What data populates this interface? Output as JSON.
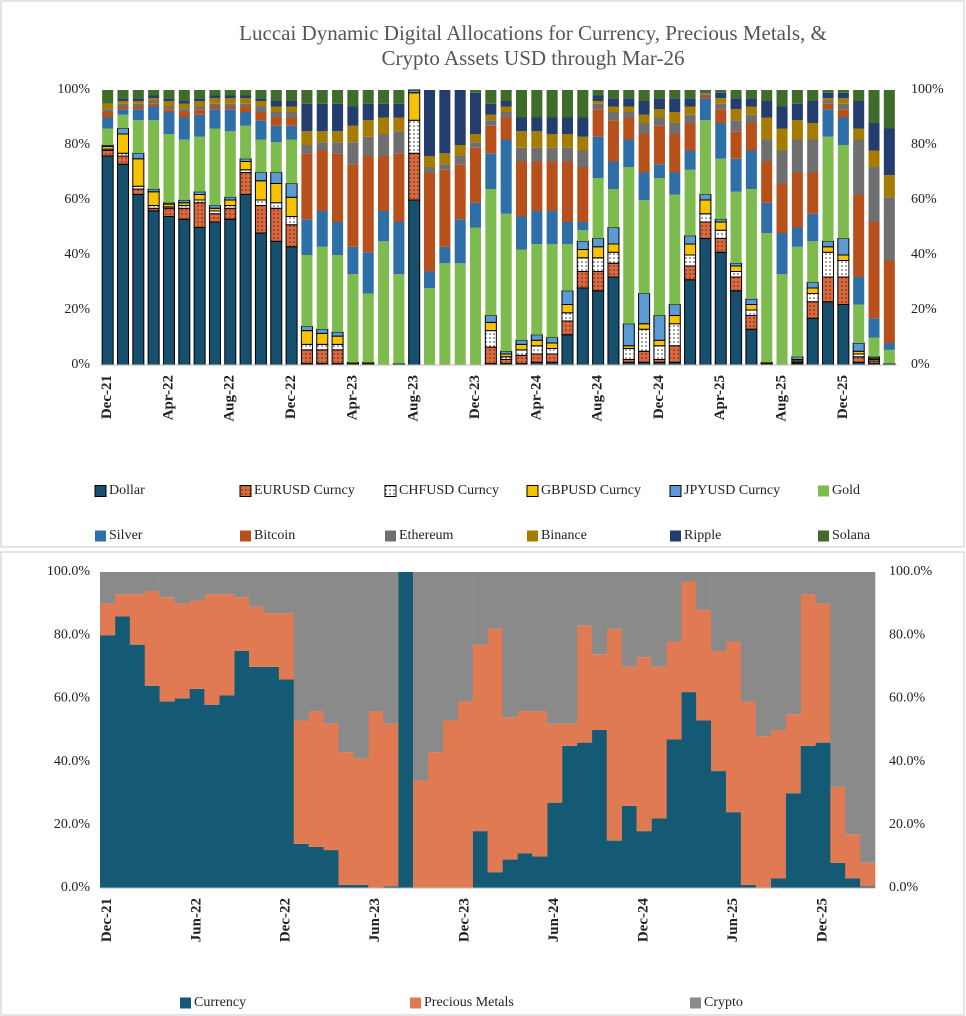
{
  "chart_data": [
    {
      "type": "bar",
      "stacked": true,
      "title": [
        "Luccai Dynamic Digital Allocations for Currency, Precious Metals, &",
        "Crypto Assets USD through Mar-26"
      ],
      "categories": [
        "Dec-21",
        null,
        null,
        null,
        "Apr-22",
        null,
        null,
        null,
        "Aug-22",
        null,
        null,
        null,
        "Dec-22",
        null,
        null,
        null,
        "Apr-23",
        null,
        null,
        null,
        "Aug-23",
        null,
        null,
        null,
        "Dec-23",
        null,
        null,
        null,
        "Apr-24",
        null,
        null,
        null,
        "Aug-24",
        null,
        null,
        null,
        "Dec-24",
        null,
        null,
        null,
        "Apr-25",
        null,
        null,
        null,
        "Aug-25",
        null,
        null,
        null,
        "Dec-25",
        null,
        null,
        null
      ],
      "ylim": [
        0,
        100
      ],
      "yticks": [
        {
          "value": 0,
          "label": "0%"
        },
        {
          "value": 20,
          "label": "20%"
        },
        {
          "value": 40,
          "label": "40%"
        },
        {
          "value": 60,
          "label": "60%"
        },
        {
          "value": 80,
          "label": "80%"
        },
        {
          "value": 100,
          "label": "100%"
        }
      ],
      "y2lim": [
        0,
        100
      ],
      "y2ticks": [
        {
          "value": 0,
          "label": "0%"
        },
        {
          "value": 20,
          "label": "20%"
        },
        {
          "value": 40,
          "label": "40%"
        },
        {
          "value": 60,
          "label": "60%"
        },
        {
          "value": 80,
          "label": "80%"
        },
        {
          "value": 100,
          "label": "100%"
        }
      ],
      "series": [
        {
          "name": "Dollar",
          "color": "#16506e",
          "values": [
            76,
            73,
            62,
            56,
            54,
            53,
            50,
            52,
            53,
            62,
            48,
            45,
            43,
            0.5,
            0.5,
            0.5,
            0.5,
            0.5,
            0,
            0.5,
            60,
            0,
            0,
            0,
            0,
            0.5,
            0.5,
            0.5,
            1,
            1,
            11,
            28,
            27,
            32,
            1,
            1,
            1,
            1,
            31,
            46,
            41,
            27,
            13,
            0.5,
            0,
            0.5,
            17,
            23,
            22,
            1,
            0.5,
            0.5
          ]
        },
        {
          "name": "EURUSD Curncy",
          "color": "#e0673a",
          "pattern": "dots",
          "values": [
            2,
            3,
            2,
            1,
            3,
            4,
            9,
            3,
            4,
            8,
            10,
            12,
            8,
            5,
            5,
            5,
            0,
            0,
            0,
            0,
            17,
            0,
            0,
            0,
            0,
            6,
            1.5,
            3,
            3,
            3,
            5,
            6,
            7,
            5,
            1,
            4,
            1,
            6,
            5,
            6,
            5,
            5,
            5,
            0.5,
            0,
            0.5,
            6,
            9,
            10,
            2,
            1,
            0
          ]
        },
        {
          "name": "CHFUSD Curncy",
          "color": "#ffffff",
          "pattern": "dots",
          "values": [
            0.5,
            1,
            1,
            1,
            0.5,
            1,
            1,
            1,
            1,
            1,
            2,
            2,
            3,
            2,
            2,
            2,
            0,
            0,
            0,
            0,
            12,
            0,
            0,
            0,
            0,
            6,
            1,
            2,
            3,
            2,
            3,
            5,
            5,
            4,
            4,
            8,
            5,
            8,
            4,
            3,
            3,
            2,
            2,
            0,
            0,
            0.5,
            3,
            9,
            6,
            1,
            0.5,
            0
          ]
        },
        {
          "name": "GBPUSD Curncy",
          "color": "#f7c200",
          "values": [
            1,
            7,
            10,
            5,
            1,
            1,
            2,
            1,
            2,
            3,
            7,
            7,
            7,
            5,
            4,
            3,
            0.5,
            0.5,
            0,
            0,
            10,
            0,
            0,
            0,
            0,
            3,
            1,
            2,
            2,
            2,
            3,
            3,
            4,
            3,
            1,
            2,
            2,
            3,
            4,
            5,
            3,
            2,
            2,
            0,
            0,
            0.5,
            2,
            2,
            2,
            1,
            0.5,
            0
          ]
        },
        {
          "name": "JPYUSD Curncy",
          "color": "#5b9bd5",
          "values": [
            0.5,
            2,
            2,
            1,
            0.5,
            1,
            1,
            1,
            1,
            1,
            3,
            4,
            5,
            1.5,
            1.5,
            1.5,
            0,
            0,
            0,
            0,
            1,
            0,
            0,
            0,
            0,
            2.5,
            1,
            1.5,
            2,
            2,
            5,
            3,
            3,
            6,
            8,
            11,
            9,
            4,
            3,
            2,
            1,
            1,
            2,
            0,
            0,
            1,
            2,
            2,
            6,
            3,
            0.5,
            0
          ]
        },
        {
          "name": "Gold",
          "color": "#7dbb4f",
          "values": [
            6,
            5,
            12,
            25,
            25,
            22,
            20,
            28,
            24,
            12,
            12,
            11,
            16,
            26,
            30,
            28,
            32,
            25,
            45,
            32.5,
            0,
            28,
            37,
            37,
            50,
            46,
            50,
            33,
            33,
            34,
            17,
            4,
            22,
            14,
            57,
            34,
            50,
            40,
            24,
            27,
            22,
            26,
            40,
            47,
            33,
            40,
            15,
            38,
            34,
            14,
            7,
            5
          ]
        },
        {
          "name": "Silver",
          "color": "#2e6fa8",
          "values": [
            4,
            2,
            4,
            5,
            8,
            8,
            8,
            7,
            8,
            5,
            7,
            6,
            5,
            13,
            13,
            12,
            10,
            15,
            11,
            19,
            0,
            6,
            6,
            16,
            9,
            13,
            27,
            12,
            12,
            12,
            8,
            3,
            15,
            10,
            10,
            10,
            5,
            8,
            7,
            8,
            13,
            12,
            14,
            11,
            15,
            7,
            10,
            10,
            10,
            10,
            7,
            2.5
          ]
        },
        {
          "name": "Bitcoin",
          "color": "#b8501c",
          "values": [
            2,
            1,
            1,
            1,
            1,
            2,
            2,
            1,
            1,
            2,
            3,
            3,
            3,
            24,
            22,
            25,
            30,
            35,
            20,
            25,
            0,
            36,
            28,
            20,
            20,
            10,
            8,
            20,
            18,
            18,
            22,
            20,
            10,
            15,
            8,
            14,
            14,
            14,
            10,
            1,
            5,
            10,
            10,
            15,
            18,
            20,
            15,
            2,
            3,
            30,
            35,
            30
          ]
        },
        {
          "name": "Ethereum",
          "color": "#6f6f6f",
          "values": [
            1,
            1,
            1,
            1,
            1,
            1,
            1,
            1,
            1,
            1,
            2,
            2,
            2,
            3,
            3,
            4,
            8,
            7,
            8,
            8,
            0,
            2,
            2,
            3,
            2,
            2,
            2,
            5,
            5,
            5,
            5,
            6,
            2,
            3,
            2,
            4,
            3,
            4,
            3,
            0.5,
            2,
            4,
            3,
            8,
            12,
            12,
            12,
            1,
            2,
            20,
            20,
            23
          ]
        },
        {
          "name": "Binance",
          "color": "#a67c00",
          "values": [
            2,
            1,
            1,
            1,
            2,
            2,
            2,
            2,
            2,
            2,
            2,
            2,
            2,
            5,
            4,
            4,
            6,
            6,
            6,
            5,
            0,
            4,
            4,
            4,
            3,
            2,
            2,
            6,
            6,
            5,
            5,
            5,
            1,
            2,
            2,
            3,
            3,
            4,
            3,
            0.5,
            2,
            4,
            3,
            8,
            8,
            7,
            6,
            1,
            2,
            4,
            6,
            8
          ]
        },
        {
          "name": "Ripple",
          "color": "#233e6e",
          "values": [
            0,
            1,
            1,
            1,
            1,
            1,
            1,
            1,
            1,
            1,
            1,
            2,
            2,
            10,
            10,
            10,
            7,
            6,
            5,
            5,
            0,
            24,
            23,
            20,
            15,
            4,
            2,
            5,
            5,
            6,
            6,
            7,
            2,
            3,
            3,
            5,
            4,
            5,
            3,
            0.5,
            2,
            4,
            3,
            6,
            8,
            6,
            8,
            2,
            2,
            10,
            10,
            17
          ]
        },
        {
          "name": "Solana",
          "color": "#3f6b2b",
          "values": [
            5,
            3,
            3,
            2,
            3,
            4,
            3,
            2,
            2,
            2,
            3,
            4,
            4,
            5,
            5,
            5,
            6,
            5,
            5,
            5,
            0,
            0,
            0,
            0,
            1,
            5,
            4,
            10,
            10,
            10,
            10,
            10,
            2,
            3,
            3,
            4,
            3,
            3,
            3,
            0.5,
            1,
            3,
            3,
            4,
            6,
            5,
            4,
            1,
            1,
            4,
            12,
            14
          ]
        }
      ]
    },
    {
      "type": "area",
      "stacked": true,
      "categories": [
        "Dec-21",
        null,
        null,
        null,
        null,
        null,
        "Jun-22",
        null,
        null,
        null,
        null,
        null,
        "Dec-22",
        null,
        null,
        null,
        null,
        null,
        "Jun-23",
        null,
        null,
        null,
        null,
        null,
        "Dec-23",
        null,
        null,
        null,
        null,
        null,
        "Jun-24",
        null,
        null,
        null,
        null,
        null,
        "Dec-24",
        null,
        null,
        null,
        null,
        null,
        "Jun-25",
        null,
        null,
        null,
        null,
        null,
        "Dec-25",
        null,
        null,
        null
      ],
      "ylim": [
        0,
        100
      ],
      "yticks": [
        {
          "value": 0,
          "label": "0.0%"
        },
        {
          "value": 20,
          "label": "20.0%"
        },
        {
          "value": 40,
          "label": "40.0%"
        },
        {
          "value": 60,
          "label": "60.0%"
        },
        {
          "value": 80,
          "label": "80.0%"
        },
        {
          "value": 100,
          "label": "100.0%"
        }
      ],
      "y2lim": [
        0,
        100
      ],
      "y2ticks": [
        {
          "value": 0,
          "label": "0.0%"
        },
        {
          "value": 20,
          "label": "20.0%"
        },
        {
          "value": 40,
          "label": "40.0%"
        },
        {
          "value": 60,
          "label": "60.0%"
        },
        {
          "value": 80,
          "label": "80.0%"
        },
        {
          "value": 100,
          "label": "100.0%"
        }
      ],
      "series": [
        {
          "name": "Currency",
          "color": "#155a74",
          "values": [
            80,
            86,
            77,
            64,
            59,
            60,
            63,
            58,
            61,
            75,
            70,
            70,
            66,
            14,
            13,
            12,
            1,
            1,
            0,
            0.5,
            100,
            0,
            0,
            0,
            0,
            18,
            5,
            9,
            11,
            10,
            27,
            45,
            46,
            50,
            15,
            26,
            18,
            22,
            47,
            62,
            53,
            37,
            24,
            1,
            0,
            3,
            30,
            45,
            46,
            8,
            3,
            0.5
          ]
        },
        {
          "name": "Precious Metals",
          "color": "#e07a52",
          "values": [
            10,
            7,
            16,
            30,
            33,
            30,
            28,
            35,
            32,
            17,
            19,
            17,
            21,
            39,
            43,
            40,
            42,
            40,
            56,
            51.5,
            0,
            34,
            43,
            53,
            59,
            59,
            77,
            45,
            45,
            46,
            25,
            7,
            37,
            24,
            67,
            44,
            55,
            48,
            31,
            35,
            35,
            38,
            54,
            58,
            48,
            47,
            25,
            48,
            44,
            24,
            14,
            7.5
          ]
        },
        {
          "name": "Crypto",
          "color": "#8a8a8a",
          "values": [
            10,
            7,
            7,
            6,
            8,
            10,
            9,
            7,
            7,
            8,
            11,
            13,
            13,
            47,
            44,
            48,
            57,
            59,
            44,
            48,
            0,
            66,
            57,
            47,
            41,
            23,
            18,
            46,
            44,
            44,
            48,
            48,
            17,
            26,
            18,
            30,
            27,
            30,
            22,
            3,
            12,
            25,
            22,
            41,
            52,
            50,
            45,
            7,
            10,
            68,
            83,
            92
          ]
        }
      ]
    }
  ]
}
